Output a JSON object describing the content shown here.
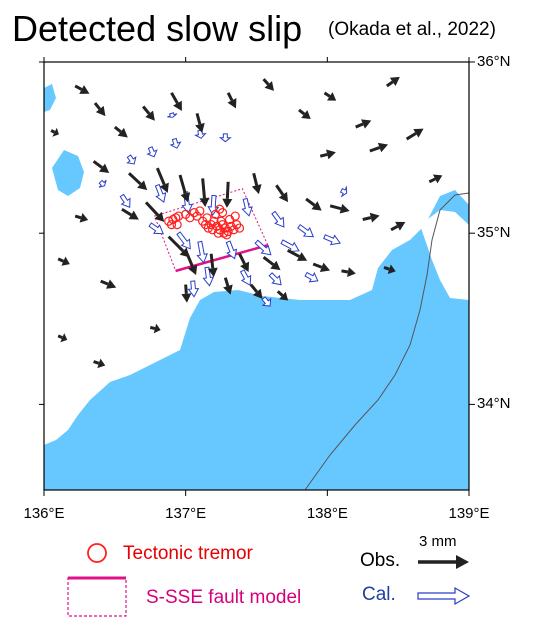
{
  "header": {
    "title": "Detected slow slip",
    "citation": "(Okada et al., 2022)"
  },
  "axes": {
    "x_ticks": [
      {
        "value": 136,
        "label": "136°E"
      },
      {
        "value": 137,
        "label": "137°E"
      },
      {
        "value": 138,
        "label": "138°E"
      },
      {
        "value": 139,
        "label": "139°E"
      }
    ],
    "y_ticks": [
      {
        "value": 36,
        "label": "36°N"
      },
      {
        "value": 35,
        "label": "35°N"
      },
      {
        "value": 34,
        "label": "34°N"
      }
    ],
    "lon_range": [
      136,
      139
    ],
    "lat_range": [
      33.5,
      36
    ]
  },
  "colors": {
    "sea": "#66c8ff",
    "land": "#ffffff",
    "observed_vector": "#222222",
    "calculated_vector": "#2a3fc8",
    "tremor": "#ff2020",
    "fault_model": "#e0108a",
    "trench_line": "#555555"
  },
  "legend": {
    "tremor_label": "Tectonic tremor",
    "fault_label": "S-SSE fault model",
    "observed_label": "Obs.",
    "calculated_label": "Cal.",
    "scale_label": "3 mm"
  },
  "fault_model": {
    "corners": [
      [
        136.93,
        34.78
      ],
      [
        137.58,
        34.93
      ],
      [
        137.4,
        35.26
      ],
      [
        136.78,
        35.1
      ]
    ]
  },
  "tremors": [
    [
      136.88,
      35.07
    ],
    [
      136.91,
      35.08
    ],
    [
      136.93,
      35.09
    ],
    [
      136.95,
      35.1
    ],
    [
      136.9,
      35.05
    ],
    [
      136.94,
      35.05
    ],
    [
      137.0,
      35.11
    ],
    [
      137.03,
      35.09
    ],
    [
      137.06,
      35.12
    ],
    [
      137.08,
      35.1
    ],
    [
      137.1,
      35.13
    ],
    [
      137.12,
      35.07
    ],
    [
      137.14,
      35.05
    ],
    [
      137.16,
      35.03
    ],
    [
      137.18,
      35.05
    ],
    [
      137.2,
      35.07
    ],
    [
      137.22,
      35.04
    ],
    [
      137.24,
      35.02
    ],
    [
      137.26,
      35.05
    ],
    [
      137.28,
      35.03
    ],
    [
      137.3,
      35.01
    ],
    [
      137.32,
      35.04
    ],
    [
      137.34,
      35.02
    ],
    [
      137.36,
      35.05
    ],
    [
      137.38,
      35.03
    ],
    [
      137.19,
      35.02
    ],
    [
      137.23,
      35.0
    ],
    [
      137.27,
      35.0
    ],
    [
      137.25,
      35.07
    ],
    [
      137.31,
      35.08
    ],
    [
      137.21,
      35.11
    ],
    [
      137.26,
      35.12
    ],
    [
      137.15,
      35.09
    ],
    [
      137.35,
      35.1
    ],
    [
      137.29,
      34.99
    ],
    [
      137.24,
      35.14
    ]
  ],
  "obs_vectors": [
    [
      136.22,
      35.86,
      1.1,
      -0.6
    ],
    [
      136.36,
      35.76,
      0.8,
      -1.0
    ],
    [
      136.5,
      35.62,
      1.0,
      -0.8
    ],
    [
      136.7,
      35.74,
      0.9,
      -1.1
    ],
    [
      136.9,
      35.82,
      0.8,
      -1.4
    ],
    [
      137.08,
      35.7,
      0.4,
      -1.5
    ],
    [
      137.3,
      35.82,
      0.6,
      -1.2
    ],
    [
      137.55,
      35.9,
      0.8,
      -0.9
    ],
    [
      137.8,
      35.72,
      0.9,
      -0.7
    ],
    [
      137.98,
      35.82,
      0.9,
      -0.6
    ],
    [
      138.2,
      35.62,
      1.2,
      0.5
    ],
    [
      138.42,
      35.86,
      1.0,
      0.7
    ],
    [
      138.56,
      35.55,
      1.3,
      0.8
    ],
    [
      138.3,
      35.48,
      1.4,
      0.5
    ],
    [
      136.35,
      35.42,
      1.2,
      -0.9
    ],
    [
      136.6,
      35.35,
      1.4,
      -1.3
    ],
    [
      136.8,
      35.38,
      0.8,
      -1.9
    ],
    [
      136.96,
      35.34,
      0.6,
      -2.1
    ],
    [
      137.12,
      35.32,
      0.2,
      -2.2
    ],
    [
      137.3,
      35.3,
      -0.1,
      -2.0
    ],
    [
      137.48,
      35.35,
      0.4,
      -1.6
    ],
    [
      137.64,
      35.28,
      0.9,
      -1.3
    ],
    [
      137.85,
      35.2,
      1.2,
      -0.9
    ],
    [
      138.02,
      35.16,
      1.5,
      -0.4
    ],
    [
      138.25,
      35.08,
      1.3,
      0.3
    ],
    [
      138.45,
      35.02,
      1.1,
      0.6
    ],
    [
      136.55,
      35.14,
      1.3,
      -0.8
    ],
    [
      136.72,
      35.18,
      1.4,
      -1.5
    ],
    [
      136.88,
      34.98,
      1.6,
      -1.6
    ],
    [
      137.0,
      34.9,
      0.8,
      -1.9
    ],
    [
      137.18,
      34.88,
      0.2,
      -1.8
    ],
    [
      137.38,
      34.88,
      0.7,
      -1.4
    ],
    [
      137.55,
      34.86,
      1.3,
      -1.0
    ],
    [
      137.72,
      34.9,
      1.5,
      -0.8
    ],
    [
      137.9,
      34.82,
      1.3,
      -0.5
    ],
    [
      138.1,
      34.78,
      1.1,
      -0.2
    ],
    [
      137.28,
      34.74,
      0.4,
      -1.3
    ],
    [
      137.46,
      34.7,
      0.9,
      -1.1
    ],
    [
      137.65,
      34.66,
      0.8,
      -0.7
    ],
    [
      137.0,
      34.7,
      0.1,
      -1.4
    ],
    [
      136.4,
      34.72,
      1.2,
      -0.5
    ],
    [
      136.22,
      35.1,
      1.0,
      -0.3
    ],
    [
      136.1,
      34.85,
      0.9,
      -0.4
    ],
    [
      136.35,
      34.25,
      0.9,
      -0.3
    ],
    [
      136.75,
      34.45,
      0.8,
      -0.2
    ],
    [
      136.1,
      34.4,
      0.7,
      -0.3
    ],
    [
      138.72,
      35.3,
      1.0,
      0.5
    ],
    [
      138.4,
      34.8,
      0.9,
      -0.3
    ],
    [
      136.05,
      35.6,
      0.6,
      -0.3
    ],
    [
      137.95,
      35.45,
      1.2,
      0.3
    ]
  ],
  "cal_vectors": [
    [
      136.6,
      35.45,
      0.4,
      -0.6
    ],
    [
      136.75,
      35.5,
      0.3,
      -0.7
    ],
    [
      136.92,
      35.55,
      0.2,
      -0.7
    ],
    [
      137.1,
      35.6,
      0.1,
      -0.6
    ],
    [
      137.28,
      35.58,
      0.0,
      -0.6
    ],
    [
      136.55,
      35.22,
      0.6,
      -0.9
    ],
    [
      136.8,
      35.28,
      0.5,
      -1.3
    ],
    [
      137.0,
      35.24,
      0.2,
      -1.6
    ],
    [
      137.2,
      35.22,
      -0.1,
      -1.5
    ],
    [
      137.42,
      35.2,
      0.3,
      -1.3
    ],
    [
      137.62,
      35.12,
      0.8,
      -1.1
    ],
    [
      137.8,
      35.04,
      1.1,
      -0.8
    ],
    [
      137.98,
      34.98,
      1.2,
      -0.5
    ],
    [
      136.95,
      35.0,
      0.9,
      -1.2
    ],
    [
      137.1,
      34.95,
      0.3,
      -1.6
    ],
    [
      137.3,
      34.95,
      0.5,
      -1.3
    ],
    [
      137.5,
      34.95,
      1.1,
      -1.0
    ],
    [
      137.68,
      34.95,
      1.3,
      -0.7
    ],
    [
      137.15,
      34.8,
      0.2,
      -1.4
    ],
    [
      137.4,
      34.78,
      0.6,
      -1.1
    ],
    [
      137.6,
      34.76,
      0.8,
      -0.8
    ],
    [
      137.85,
      34.76,
      0.9,
      -0.5
    ],
    [
      136.75,
      35.05,
      1.0,
      -0.7
    ],
    [
      137.05,
      34.72,
      0.1,
      -1.2
    ],
    [
      137.55,
      34.62,
      0.5,
      -0.6
    ],
    [
      136.4,
      35.3,
      0.3,
      -0.3
    ],
    [
      138.1,
      35.25,
      0.4,
      -0.2
    ],
    [
      136.9,
      35.7,
      0.1,
      -0.3
    ]
  ]
}
